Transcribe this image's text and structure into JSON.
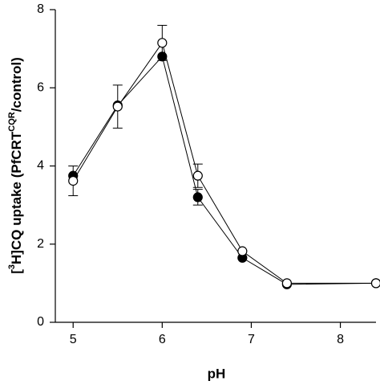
{
  "chart_data": {
    "type": "line",
    "x_label": "pH",
    "y_label": [
      "[",
      "3",
      "H]CQ uptake (PfCRT",
      "CQR",
      "/control)"
    ],
    "x": [
      5,
      5.5,
      6,
      6.4,
      6.9,
      7.4,
      8.4
    ],
    "series": [
      {
        "color": "#000000",
        "fill": "#000000",
        "values": [
          3.75,
          5.55,
          6.8,
          3.2,
          1.65,
          0.97,
          1.0
        ],
        "errors": [
          null,
          null,
          null,
          0.2,
          null,
          null,
          null
        ]
      },
      {
        "color": "#000000",
        "fill": "#ffffff",
        "values": [
          3.62,
          5.52,
          7.15,
          3.75,
          1.82,
          1.0,
          1.0
        ],
        "errors": [
          0.38,
          0.55,
          0.45,
          0.3,
          null,
          null,
          null
        ]
      }
    ],
    "xlim": [
      4.8,
      8.4
    ],
    "xticks": [
      5,
      6,
      7,
      8
    ],
    "ylim": [
      0,
      8
    ],
    "yticks": [
      0,
      2,
      4,
      6,
      8
    ]
  }
}
